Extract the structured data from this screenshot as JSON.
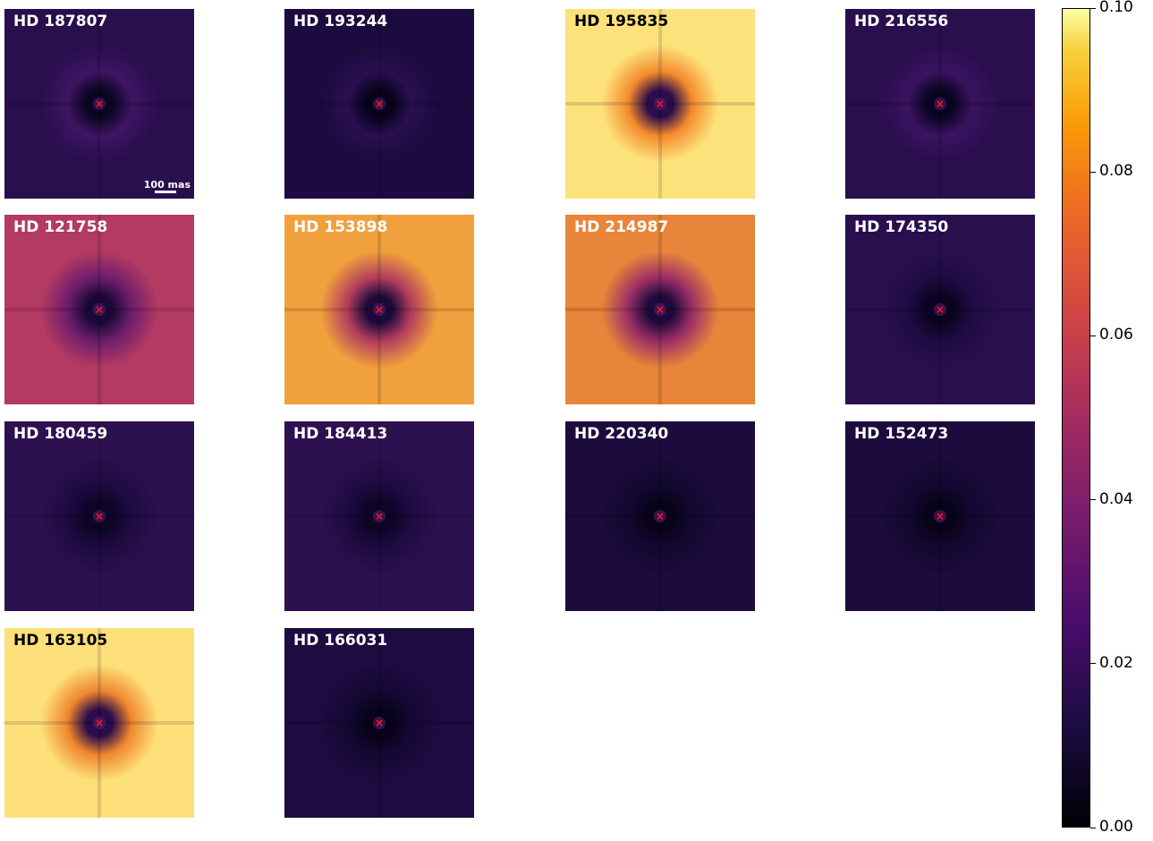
{
  "panels": [
    {
      "label": "HD 187807",
      "bg": "#2a0f4e",
      "halo": "#3e1463",
      "center": "#0a0520",
      "label_color": "#ffffff"
    },
    {
      "label": "HD 193244",
      "bg": "#1c0b3e",
      "halo": "#2a0f52",
      "center": "#07031a",
      "label_color": "#ffffff"
    },
    {
      "label": "HD 195835",
      "bg": "#fde27c",
      "halo": "#f48a2c",
      "center": "#2b0c4c",
      "label_color": "#000000"
    },
    {
      "label": "HD 216556",
      "bg": "#2a0e4e",
      "halo": "#3a1360",
      "center": "#0a0420",
      "label_color": "#ffffff"
    },
    {
      "label": "HD 121758",
      "bg": "#b33a62",
      "halo": "#6d1d6c",
      "center": "#1a0836",
      "label_color": "#ffffff"
    },
    {
      "label": "HD 153898",
      "bg": "#f0a03c",
      "halo": "#b23d5e",
      "center": "#1d0a3a",
      "label_color": "#ffffff"
    },
    {
      "label": "HD 214987",
      "bg": "#e8853a",
      "halo": "#9a2d66",
      "center": "#1d0a3a",
      "label_color": "#ffffff"
    },
    {
      "label": "HD 174350",
      "bg": "#2a0f4f",
      "halo": "#1f0b42",
      "center": "#0a0420",
      "label_color": "#ffffff"
    },
    {
      "label": "HD 180459",
      "bg": "#2d104f",
      "halo": "#1e0a40",
      "center": "#0c0526",
      "label_color": "#ffffff"
    },
    {
      "label": "HD 184413",
      "bg": "#2d104f",
      "halo": "#1e0a40",
      "center": "#0c0526",
      "label_color": "#ffffff"
    },
    {
      "label": "HD 220340",
      "bg": "#1c0b3c",
      "halo": "#120830",
      "center": "#08041a",
      "label_color": "#ffffff"
    },
    {
      "label": "HD 152473",
      "bg": "#1c0b3c",
      "halo": "#120830",
      "center": "#08041a",
      "label_color": "#ffffff"
    },
    {
      "label": "HD 163105",
      "bg": "#fde07a",
      "halo": "#f0862e",
      "center": "#2b0c4c",
      "label_color": "#000000"
    },
    {
      "label": "HD 166031",
      "bg": "#1e0b40",
      "halo": "#140833",
      "center": "#07031a",
      "label_color": "#ffffff"
    }
  ],
  "scalebar": {
    "label": "100 mas"
  },
  "colorbar": {
    "min": 0.0,
    "max": 0.1,
    "colormap": "inferno",
    "ticks": [
      "0.00",
      "0.02",
      "0.04",
      "0.06",
      "0.08",
      "0.10"
    ],
    "tick_values": [
      0.0,
      0.02,
      0.04,
      0.06,
      0.08,
      0.1
    ]
  },
  "marker": {
    "symbol": "×",
    "color": "#ff1a1a"
  }
}
